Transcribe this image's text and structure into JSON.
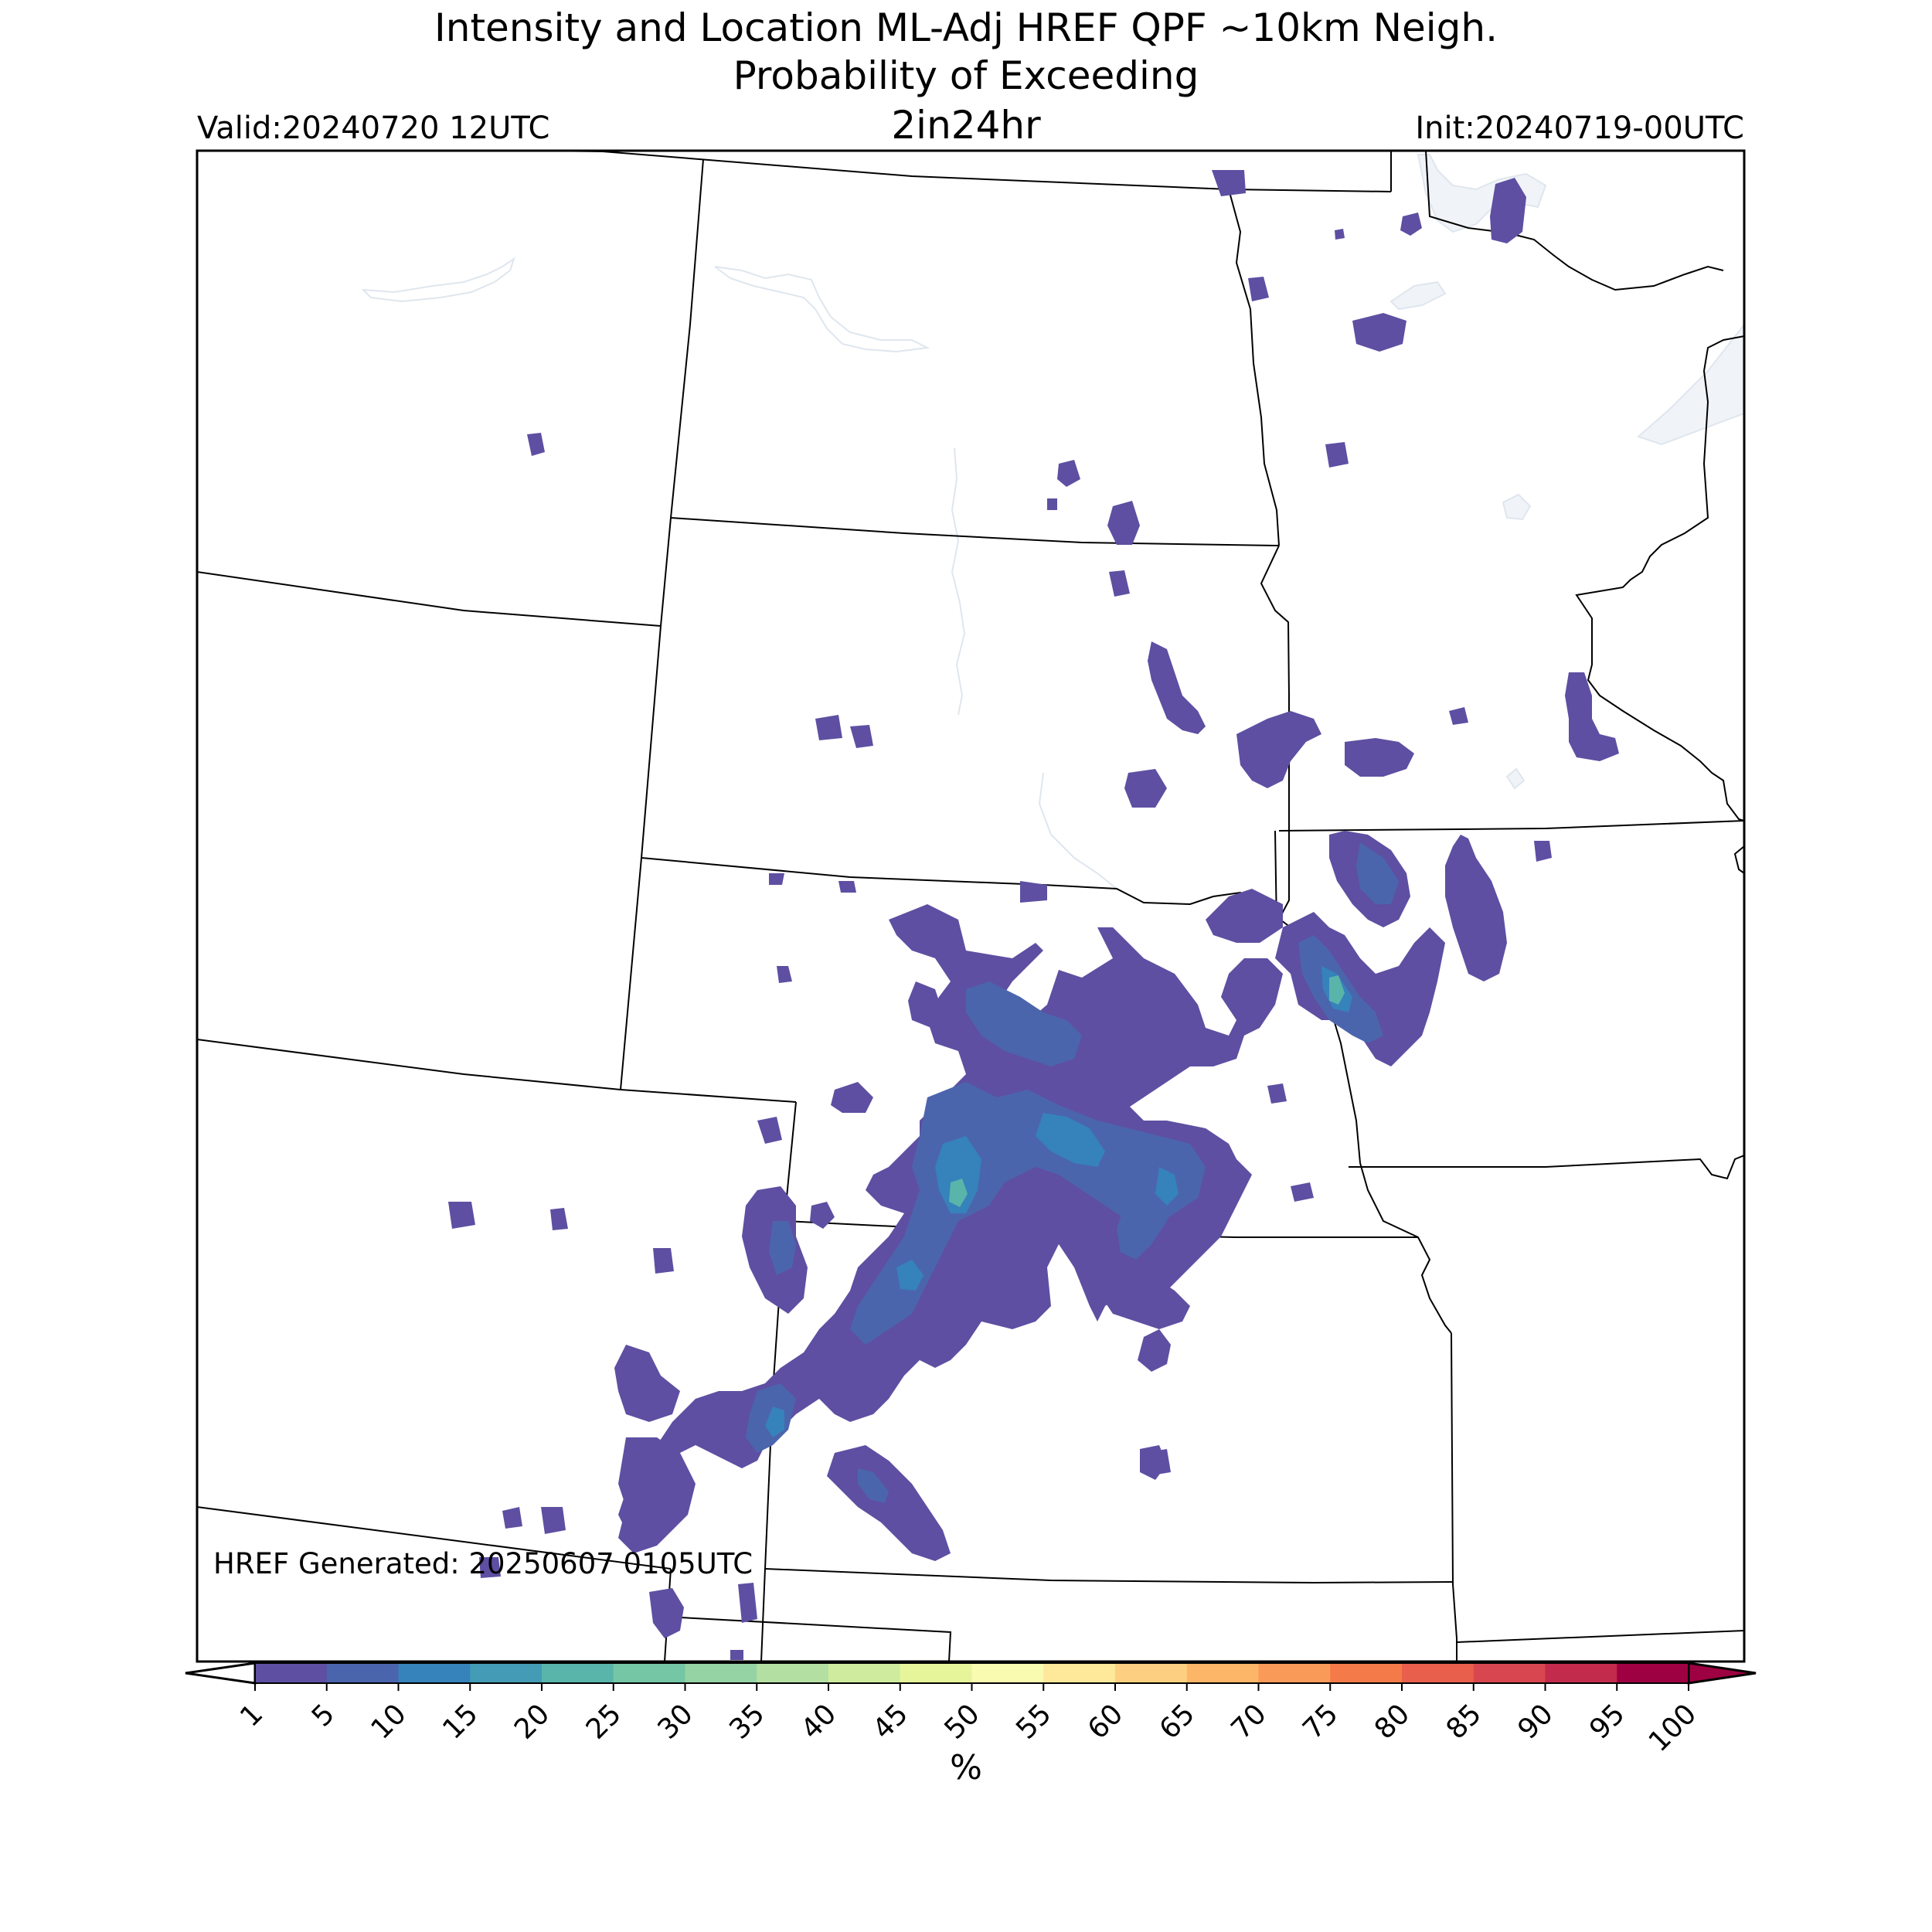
{
  "title": {
    "line1": "Intensity and Location ML-Adj HREF QPF ~10km Neigh.",
    "line2": "Probability of Exceeding",
    "line3": "2in24hr"
  },
  "valid_label": "Valid:20240720 12UTC",
  "init_label": "Init:20240719-00UTC",
  "generated_label": "HREF Generated: 20250607 0105UTC",
  "colorbar": {
    "unit": "%",
    "ticks": [
      "1",
      "5",
      "10",
      "15",
      "20",
      "25",
      "30",
      "35",
      "40",
      "45",
      "50",
      "55",
      "60",
      "65",
      "70",
      "75",
      "80",
      "85",
      "90",
      "95",
      "100"
    ],
    "colors": [
      "#5e4fa2",
      "#4b65ad",
      "#3682ba",
      "#439bb5",
      "#59b4aa",
      "#74c6a5",
      "#95d3a4",
      "#b3e0a2",
      "#cfec9e",
      "#e7f59a",
      "#f8fbb0",
      "#fee89a",
      "#fdd081",
      "#fdb668",
      "#fa9a59",
      "#f47a4a",
      "#e8604c",
      "#d8464f",
      "#c22b4b",
      "#9e0142"
    ],
    "under_color": "#ffffff",
    "over_color": "#9e0142"
  },
  "map": {
    "region": "Northern and Central Plains, Upper Midwest",
    "water_color": "#f0f4f8",
    "border_color": "#000000",
    "probability_fill_colors": {
      "p1_5": "#5e4fa2",
      "p5_10": "#4b65ad",
      "p10_15": "#3682ba",
      "p15_20": "#439bb5",
      "p20_25": "#59b4aa",
      "p25_30": "#74c6a5"
    }
  }
}
